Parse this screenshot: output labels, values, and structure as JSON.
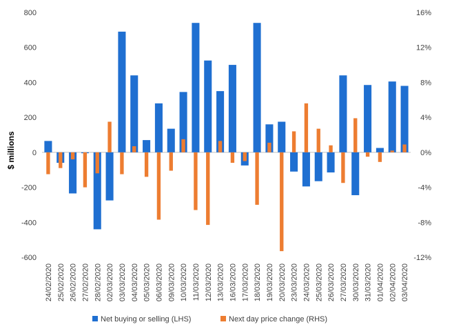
{
  "colors": {
    "lhs": "#1F6FD1",
    "rhs": "#ED7D31",
    "axis": "#BFBFBF",
    "text": "#404040"
  },
  "chart_data": {
    "type": "bar",
    "title": "",
    "ylabel": "$ millions",
    "y2label": "",
    "ylim": [
      -600,
      800
    ],
    "y2lim": [
      -12,
      16
    ],
    "y_ticks": [
      "800",
      "600",
      "400",
      "200",
      "0",
      "-200",
      "-400",
      "-600"
    ],
    "y2_ticks": [
      "16%",
      "12%",
      "8%",
      "4%",
      "0%",
      "-4%",
      "-8%",
      "-12%"
    ],
    "grid": false,
    "legend_position": "bottom",
    "categories": [
      "24/02/2020",
      "25/02/2020",
      "26/02/2020",
      "27/02/2020",
      "28/02/2020",
      "02/03/2020",
      "03/03/2020",
      "04/03/2020",
      "05/03/2020",
      "06/03/2020",
      "09/03/2020",
      "10/03/2020",
      "11/03/2020",
      "12/03/2020",
      "13/03/2020",
      "16/03/2020",
      "17/03/2020",
      "18/03/2020",
      "19/03/2020",
      "20/03/2020",
      "23/03/2020",
      "24/03/2020",
      "25/03/2020",
      "26/03/2020",
      "27/03/2020",
      "30/03/2020",
      "31/03/2020",
      "01/04/2020",
      "02/04/2020",
      "03/04/2020"
    ],
    "series": [
      {
        "name": "Net buying or selling (LHS)",
        "axis": "left",
        "unit": "$ millions",
        "values": [
          65,
          -60,
          -235,
          -5,
          -440,
          -275,
          690,
          440,
          70,
          280,
          135,
          345,
          740,
          525,
          350,
          500,
          -75,
          740,
          160,
          175,
          -110,
          -195,
          -165,
          -115,
          440,
          -245,
          385,
          25,
          405,
          380
        ]
      },
      {
        "name": "Next day price change (RHS)",
        "axis": "right",
        "unit": "%",
        "values": [
          -2.5,
          -1.8,
          -0.8,
          -4.0,
          -2.4,
          3.5,
          -2.5,
          0.7,
          -2.8,
          -7.7,
          -2.1,
          1.5,
          -6.6,
          -8.3,
          1.3,
          -1.2,
          -1.0,
          -6.0,
          1.1,
          -11.3,
          2.4,
          5.6,
          2.7,
          0.8,
          -3.5,
          3.9,
          -0.5,
          -1.1,
          0.2,
          0.9
        ]
      }
    ]
  }
}
